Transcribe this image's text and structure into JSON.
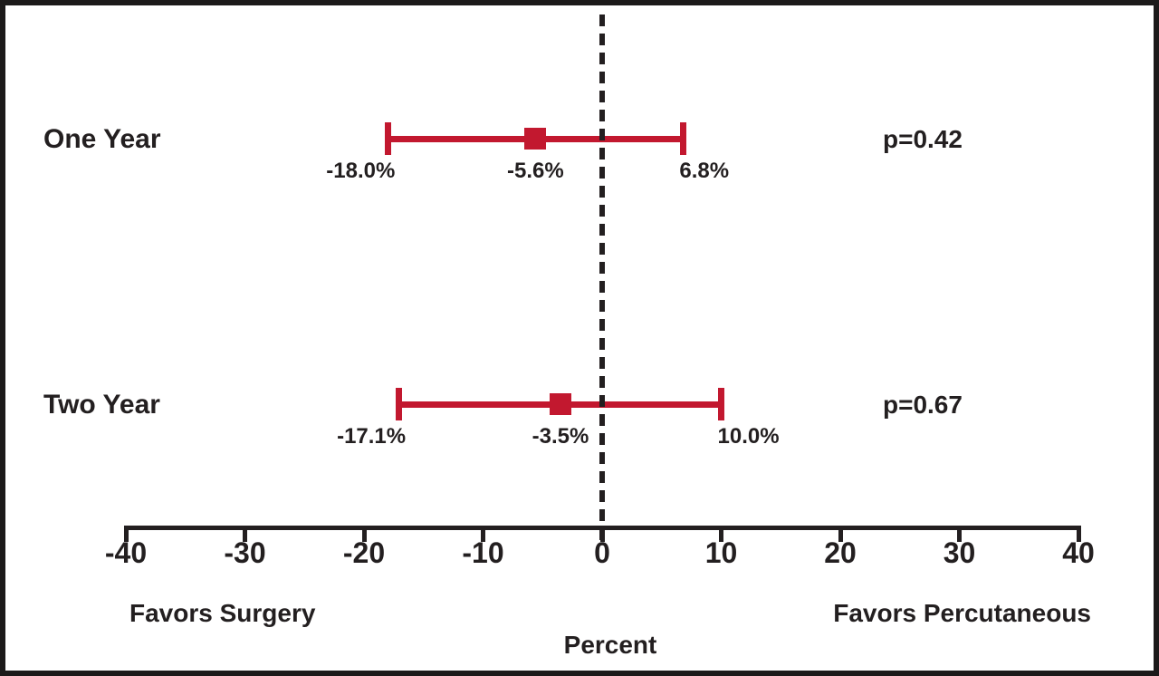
{
  "colors": {
    "accent": "#C2182F",
    "ink": "#231F20",
    "border": "#1C1A1A",
    "background": "#FFFFFF"
  },
  "chart_data": {
    "type": "forest",
    "xlabel": "Percent",
    "axis": {
      "min": -40,
      "max": 40,
      "ticks": [
        {
          "value": -40,
          "label": "-40"
        },
        {
          "value": -30,
          "label": "-30"
        },
        {
          "value": -20,
          "label": "-20"
        },
        {
          "value": -10,
          "label": "-10"
        },
        {
          "value": 0,
          "label": "0"
        },
        {
          "value": 10,
          "label": "10"
        },
        {
          "value": 20,
          "label": "20"
        },
        {
          "value": 30,
          "label": "30"
        },
        {
          "value": 40,
          "label": "40"
        }
      ]
    },
    "zero_line_value": 0,
    "direction_labels": {
      "left": "Favors Surgery",
      "right": "Favors Percutaneous"
    },
    "rows": [
      {
        "label": "One Year",
        "lower": -18.0,
        "estimate": -5.6,
        "upper": 6.8,
        "lower_label": "-18.0%",
        "estimate_label": "-5.6%",
        "upper_label": "6.8%",
        "p_label": "p=0.42"
      },
      {
        "label": "Two Year",
        "lower": -17.1,
        "estimate": -3.5,
        "upper": 10.0,
        "lower_label": "-17.1%",
        "estimate_label": "-3.5%",
        "upper_label": "10.0%",
        "p_label": "p=0.67"
      }
    ]
  }
}
